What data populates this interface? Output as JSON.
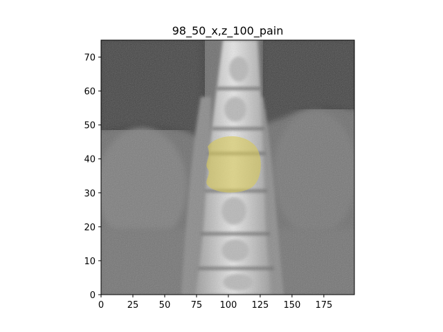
{
  "title": "98_50_x,z_100_pain",
  "x_axis": {
    "range": [
      0,
      199
    ],
    "ticks": [
      0,
      25,
      50,
      75,
      100,
      125,
      150,
      175
    ]
  },
  "y_axis": {
    "range": [
      0,
      75
    ],
    "ticks": [
      0,
      10,
      20,
      30,
      40,
      50,
      60,
      70
    ]
  },
  "image_description_type": "coronal CT slice of lumbar spine with overlaid highlight",
  "colors": {
    "highlight": "#d8c95a",
    "bone": "#e6e6e6",
    "soft_tissue": "#7a7a7a",
    "background_tissue": "#5a5a5a"
  }
}
